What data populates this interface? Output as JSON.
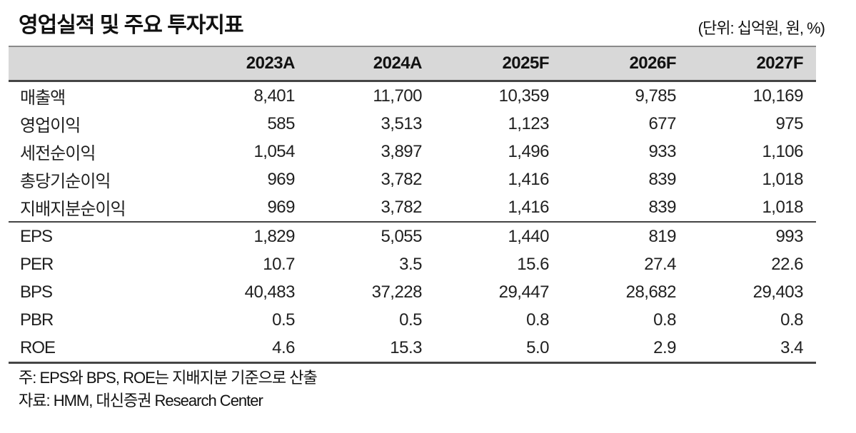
{
  "document": {
    "title": "영업실적 및 주요 투자지표",
    "unit_label": "(단위: 십억원, 원, %)"
  },
  "table": {
    "columns": [
      "2023A",
      "2024A",
      "2025F",
      "2026F",
      "2027F"
    ],
    "sections": [
      {
        "rows": [
          {
            "label": "매출액",
            "values": [
              "8,401",
              "11,700",
              "10,359",
              "9,785",
              "10,169"
            ]
          },
          {
            "label": "영업이익",
            "values": [
              "585",
              "3,513",
              "1,123",
              "677",
              "975"
            ]
          },
          {
            "label": "세전순이익",
            "values": [
              "1,054",
              "3,897",
              "1,496",
              "933",
              "1,106"
            ]
          },
          {
            "label": "총당기순이익",
            "values": [
              "969",
              "3,782",
              "1,416",
              "839",
              "1,018"
            ]
          },
          {
            "label": "지배지분순이익",
            "values": [
              "969",
              "3,782",
              "1,416",
              "839",
              "1,018"
            ]
          }
        ]
      },
      {
        "rows": [
          {
            "label": "EPS",
            "values": [
              "1,829",
              "5,055",
              "1,440",
              "819",
              "993"
            ]
          },
          {
            "label": "PER",
            "values": [
              "10.7",
              "3.5",
              "15.6",
              "27.4",
              "22.6"
            ]
          },
          {
            "label": "BPS",
            "values": [
              "40,483",
              "37,228",
              "29,447",
              "28,682",
              "29,403"
            ]
          },
          {
            "label": "PBR",
            "values": [
              "0.5",
              "0.5",
              "0.8",
              "0.8",
              "0.8"
            ]
          },
          {
            "label": "ROE",
            "values": [
              "4.6",
              "15.3",
              "5.0",
              "2.9",
              "3.4"
            ]
          }
        ]
      }
    ],
    "notes": [
      "주: EPS와 BPS, ROE는 지배지분 기준으로 산출",
      "자료: HMM, 대신증권 Research Center"
    ]
  },
  "colors": {
    "header_bg": "#d8d8d8",
    "rule_dark": "#454545",
    "rule_medium": "#8a8a8a",
    "text": "#1f1f1f"
  }
}
